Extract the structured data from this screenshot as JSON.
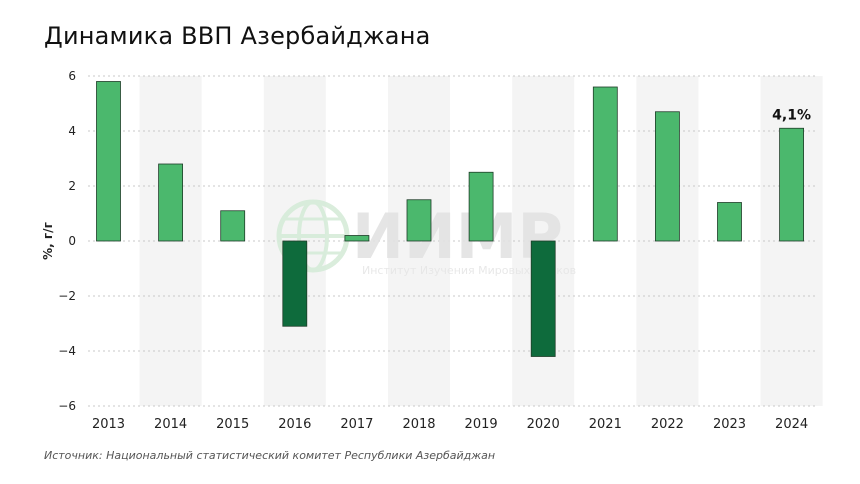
{
  "chart_data": {
    "type": "bar",
    "title": "Динамика ВВП Азербайджана",
    "ylabel": "%, г/г",
    "xlabel": "",
    "categories": [
      "2013",
      "2014",
      "2015",
      "2016",
      "2017",
      "2018",
      "2019",
      "2020",
      "2021",
      "2022",
      "2023",
      "2024"
    ],
    "values": [
      5.8,
      2.8,
      1.1,
      -3.1,
      0.2,
      1.5,
      2.5,
      -4.2,
      5.6,
      4.7,
      1.4,
      4.1
    ],
    "ylim": [
      -6,
      6
    ],
    "yticks": [
      "6",
      "4",
      "2",
      "0",
      "−2",
      "−4",
      "−6"
    ],
    "ytick_values": [
      6,
      4,
      2,
      0,
      -2,
      -4,
      -6
    ],
    "data_labels": [
      {
        "index": 11,
        "text": "4,1%"
      }
    ],
    "grid": true,
    "colors": {
      "positive": "#4bb86d",
      "negative": "#0e6b3c",
      "band": "#f4f4f4",
      "grid": "#c8c8c8"
    }
  },
  "watermark": {
    "name": "ИИМР",
    "subtitle": "Институт Изучения Мировых Рынков"
  },
  "source": "Источник: Национальный статистический комитет Республики Азербайджан"
}
